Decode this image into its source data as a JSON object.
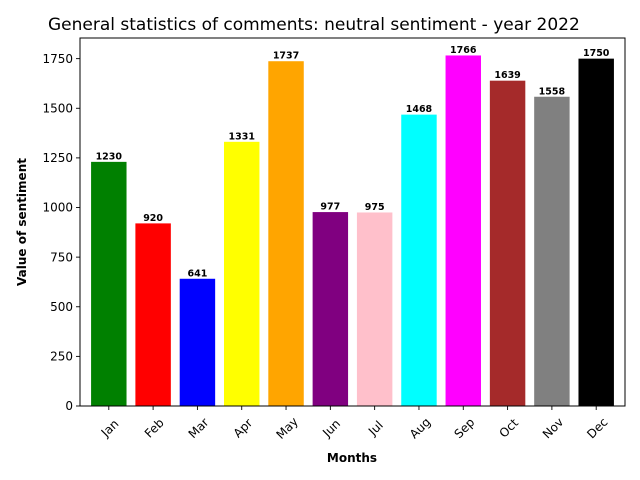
{
  "chart_data": {
    "type": "bar",
    "title": "General statistics of comments: neutral sentiment - year 2022",
    "xlabel": "Months",
    "ylabel": "Value of sentiment",
    "categories": [
      "Jan",
      "Feb",
      "Mar",
      "Apr",
      "May",
      "Jun",
      "Jul",
      "Aug",
      "Sep",
      "Oct",
      "Nov",
      "Dec"
    ],
    "values": [
      1230,
      920,
      641,
      1331,
      1737,
      977,
      975,
      1468,
      1766,
      1639,
      1558,
      1750
    ],
    "colors": [
      "#008000",
      "#ff0000",
      "#0000ff",
      "#ffff00",
      "#ffa500",
      "#800080",
      "#ffc0cb",
      "#00ffff",
      "#ff00ff",
      "#a52a2a",
      "#808080",
      "#000000"
    ],
    "ylim": [
      0,
      1854
    ],
    "yticks": [
      0,
      250,
      500,
      750,
      1000,
      1250,
      1500,
      1750
    ],
    "grid": false,
    "legend": "none"
  }
}
